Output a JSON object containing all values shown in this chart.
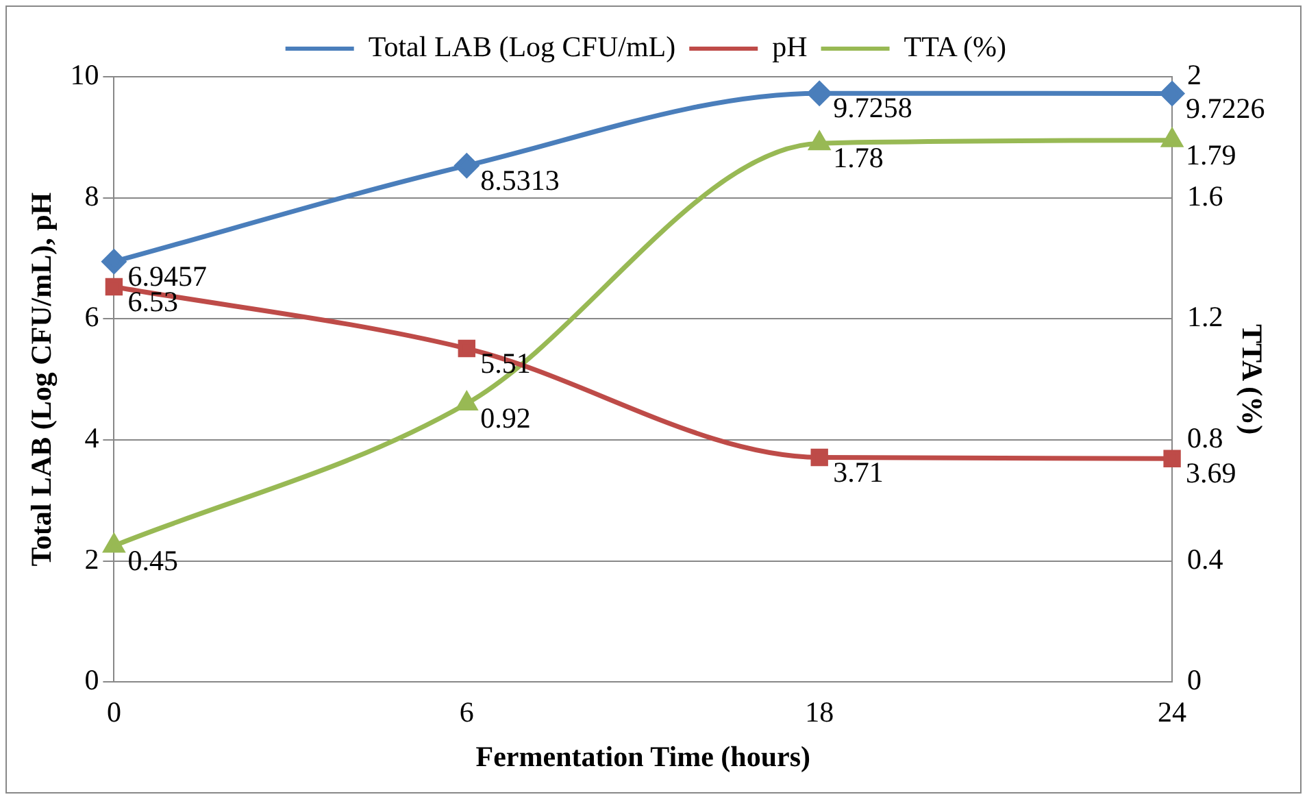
{
  "chart_data": {
    "type": "line",
    "xlabel": "Fermentation Time (hours)",
    "ylabel": "Total LAB (Log CFU/mL), pH",
    "y2label": "TTA (%)",
    "categories": [
      "0",
      "6",
      "18",
      "24"
    ],
    "series": [
      {
        "name": "Total LAB (Log CFU/mL)",
        "color": "#4a7ebb",
        "marker": "diamond",
        "values": [
          6.9457,
          8.5313,
          9.7258,
          9.7226
        ]
      },
      {
        "name": "pH",
        "color": "#be4b48",
        "marker": "square",
        "values": [
          6.53,
          5.51,
          3.71,
          3.69
        ]
      },
      {
        "name": "TTA (%)",
        "color": "#98b954",
        "marker": "triangle",
        "axis": "y2",
        "values": [
          0.45,
          0.92,
          1.78,
          1.79
        ]
      }
    ],
    "ylim": [
      0,
      10
    ],
    "yticks": [
      0,
      2,
      4,
      6,
      8,
      10
    ],
    "y2lim": [
      0,
      2
    ],
    "y2ticks": [
      0,
      0.4,
      0.8,
      1.2,
      1.6,
      2
    ],
    "grid": "y",
    "legend": "top",
    "data_labels": true,
    "line_style": "solid"
  }
}
